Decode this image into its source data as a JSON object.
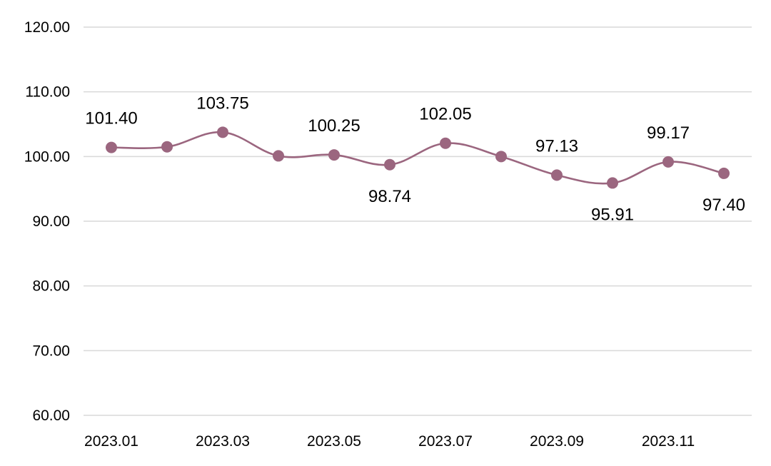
{
  "chart_data": {
    "type": "line",
    "title": "",
    "xlabel": "",
    "ylabel": "",
    "ylim": [
      60,
      120
    ],
    "y_ticks": [
      "60.00",
      "70.00",
      "80.00",
      "90.00",
      "100.00",
      "110.00",
      "120.00"
    ],
    "y_tick_values": [
      60,
      70,
      80,
      90,
      100,
      110,
      120
    ],
    "grid": "horizontal",
    "legend": "none",
    "smooth": true,
    "categories": [
      "2023.01",
      "2023.02",
      "2023.03",
      "2023.04",
      "2023.05",
      "2023.06",
      "2023.07",
      "2023.08",
      "2023.09",
      "2023.10",
      "2023.11",
      "2023.12"
    ],
    "x_tick_labels": [
      "2023.01",
      "",
      "2023.03",
      "",
      "2023.05",
      "",
      "2023.07",
      "",
      "2023.09",
      "",
      "2023.11",
      ""
    ],
    "series": [
      {
        "color": "#9b667f",
        "values": [
          101.4,
          101.5,
          103.75,
          100.1,
          100.25,
          98.74,
          102.05,
          100.0,
          97.13,
          95.91,
          99.17,
          97.4
        ],
        "data_labels": [
          "101.40",
          "",
          "103.75",
          "",
          "100.25",
          "98.74",
          "102.05",
          "",
          "97.13",
          "95.91",
          "99.17",
          "97.40"
        ],
        "label_positions": [
          "above",
          "",
          "above",
          "",
          "above",
          "below",
          "above",
          "",
          "above",
          "below",
          "above",
          "below"
        ]
      }
    ]
  }
}
